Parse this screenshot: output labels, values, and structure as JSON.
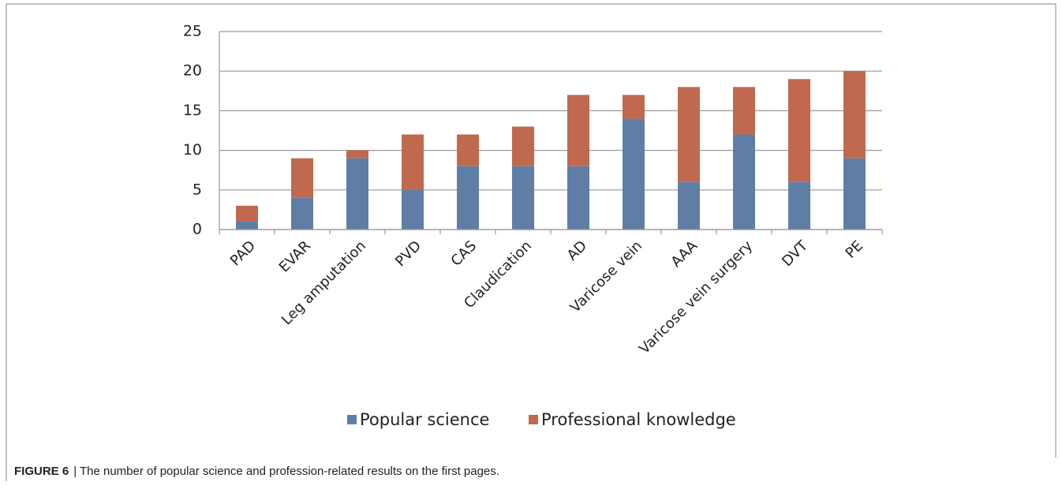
{
  "chart_data": {
    "type": "stacked_bar",
    "categories": [
      "PAD",
      "EVAR",
      "Leg amputation",
      "PVD",
      "CAS",
      "Claudication",
      "AD",
      "Varicose vein",
      "AAA",
      "Varicose vein surgery",
      "DVT",
      "PE"
    ],
    "series": [
      {
        "name": "Popular science",
        "color": "#5f7ea6",
        "values": [
          1,
          4,
          9,
          5,
          8,
          8,
          8,
          14,
          6,
          12,
          6,
          9
        ]
      },
      {
        "name": "Professional knowledge",
        "color": "#c0694f",
        "values": [
          2,
          5,
          1,
          7,
          4,
          5,
          9,
          3,
          12,
          6,
          13,
          11
        ]
      }
    ],
    "ylim": [
      0,
      25
    ],
    "yticks": [
      0,
      5,
      10,
      15,
      20,
      25
    ],
    "grid": true,
    "legend": "bottom"
  },
  "caption": {
    "label": "FIGURE 6",
    "text": "| The number of popular science and profession-related results on the first pages."
  }
}
